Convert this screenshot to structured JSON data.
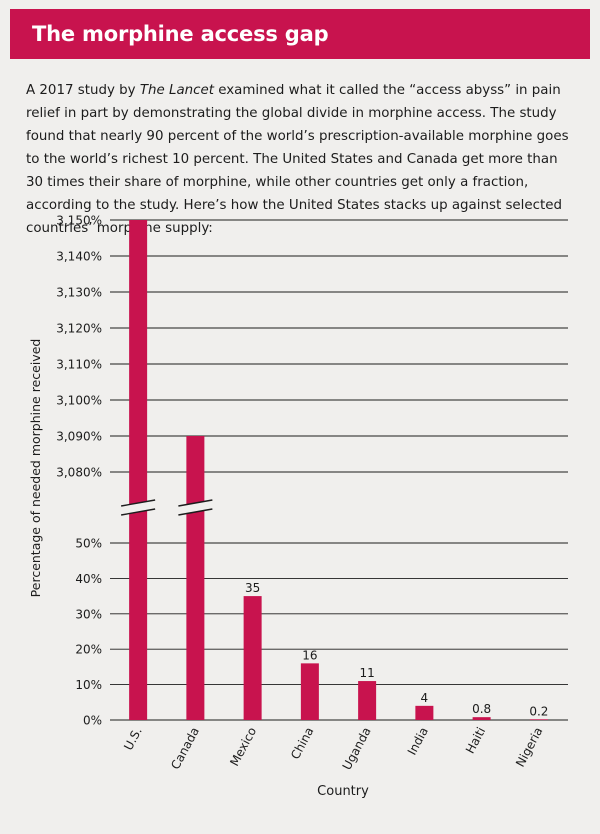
{
  "header": {
    "title": "The morphine access gap"
  },
  "intro": {
    "before": "A 2017 study by ",
    "source": "The Lancet",
    "after": " examined what it called the “access abyss” in pain relief in part by demonstrating the global divide in morphine access. The study found that nearly 90 percent of the world’s prescription-available morphine goes to the world’s richest 10 percent. The United States and Canada get more than 30 times their share of morphine, while other countries get only a fraction, according to the study. Here’s how the United States stacks up against selected countries’ morphine supply:"
  },
  "colors": {
    "accent": "#c8134e",
    "background": "#f0efed",
    "text": "#1c1c1c"
  },
  "chart_data": {
    "type": "bar",
    "xlabel": "Country",
    "ylabel": "Percentage of needed morphine received",
    "categories": [
      "U.S.",
      "Canada",
      "Mexico",
      "China",
      "Uganda",
      "India",
      "Haiti",
      "Nigeria"
    ],
    "values": [
      3150,
      3090,
      35,
      16,
      11,
      4,
      0.8,
      0.2
    ],
    "data_labels": [
      "",
      "",
      "35",
      "16",
      "11",
      "4",
      "0.8",
      "0.2"
    ],
    "axis_break": true,
    "lower_segment": {
      "ylim": [
        0,
        50
      ],
      "ticks": [
        "0%",
        "10%",
        "20%",
        "30%",
        "40%",
        "50%"
      ]
    },
    "upper_segment": {
      "ylim": [
        3080,
        3150
      ],
      "ticks": [
        "3,080%",
        "3,090%",
        "3,100%",
        "3,110%",
        "3,120%",
        "3,130%",
        "3,140%",
        "3,150%"
      ]
    },
    "grid": true
  }
}
